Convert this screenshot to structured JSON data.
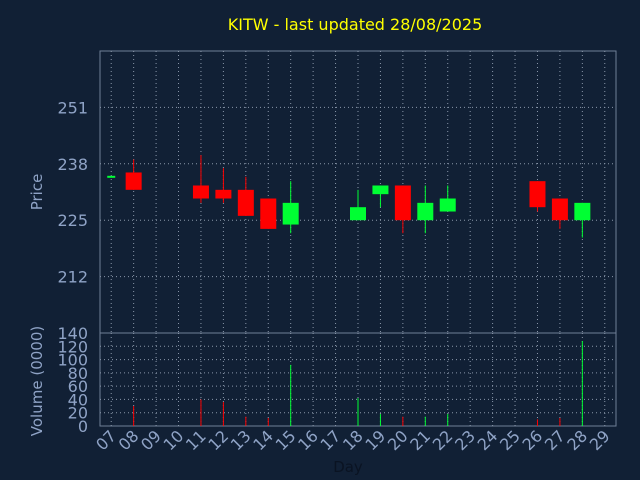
{
  "chart_data": {
    "type": "candlestick",
    "title": "KITW - last updated 28/08/2025",
    "xlabel": "Day",
    "colors": {
      "background": "#112035",
      "panel_border": "#6f7f96",
      "grid": "#8a97aa",
      "text": "#8fa3c6",
      "title": "#ffff00",
      "up": "#00ff33",
      "down": "#ff0000",
      "flat": "#00ff33"
    },
    "categories": [
      "07",
      "08",
      "09",
      "10",
      "11",
      "12",
      "13",
      "14",
      "15",
      "16",
      "17",
      "18",
      "19",
      "20",
      "21",
      "22",
      "23",
      "24",
      "25",
      "26",
      "27",
      "28",
      "29"
    ],
    "price_panel": {
      "ylabel": "Price",
      "ylim": [
        199,
        264
      ],
      "yticks": [
        212,
        225,
        238,
        251
      ],
      "candles": [
        {
          "day": "07",
          "open": 235,
          "close": 235,
          "high": 235,
          "low": 235
        },
        {
          "day": "08",
          "open": 236,
          "close": 232,
          "high": 239,
          "low": 232
        },
        {
          "day": "11",
          "open": 233,
          "close": 230,
          "high": 240,
          "low": 229
        },
        {
          "day": "12",
          "open": 232,
          "close": 230,
          "high": 237,
          "low": 229
        },
        {
          "day": "13",
          "open": 232,
          "close": 226,
          "high": 235,
          "low": 226
        },
        {
          "day": "14",
          "open": 230,
          "close": 223,
          "high": 230,
          "low": 223
        },
        {
          "day": "15",
          "open": 224,
          "close": 229,
          "high": 234,
          "low": 222
        },
        {
          "day": "18",
          "open": 225,
          "close": 228,
          "high": 232,
          "low": 225
        },
        {
          "day": "19",
          "open": 231,
          "close": 233,
          "high": 233,
          "low": 228
        },
        {
          "day": "20",
          "open": 233,
          "close": 225,
          "high": 233,
          "low": 222
        },
        {
          "day": "21",
          "open": 225,
          "close": 229,
          "high": 233,
          "low": 222
        },
        {
          "day": "22",
          "open": 227,
          "close": 230,
          "high": 233,
          "low": 227
        },
        {
          "day": "26",
          "open": 234,
          "close": 228,
          "high": 234,
          "low": 227
        },
        {
          "day": "27",
          "open": 230,
          "close": 225,
          "high": 230,
          "low": 223
        },
        {
          "day": "28",
          "open": 225,
          "close": 229,
          "high": 229,
          "low": 221
        }
      ]
    },
    "volume_panel": {
      "ylabel": "Volume (0000)",
      "ylim": [
        0,
        140
      ],
      "yticks": [
        0,
        20,
        40,
        60,
        80,
        100,
        120,
        140
      ],
      "bars": [
        {
          "day": "08",
          "value": 30,
          "direction": "down"
        },
        {
          "day": "11",
          "value": 40,
          "direction": "down"
        },
        {
          "day": "12",
          "value": 36,
          "direction": "down"
        },
        {
          "day": "13",
          "value": 14,
          "direction": "down"
        },
        {
          "day": "14",
          "value": 12,
          "direction": "down"
        },
        {
          "day": "15",
          "value": 92,
          "direction": "up"
        },
        {
          "day": "18",
          "value": 42,
          "direction": "up"
        },
        {
          "day": "19",
          "value": 18,
          "direction": "up"
        },
        {
          "day": "20",
          "value": 14,
          "direction": "down"
        },
        {
          "day": "21",
          "value": 14,
          "direction": "up"
        },
        {
          "day": "22",
          "value": 18,
          "direction": "up"
        },
        {
          "day": "26",
          "value": 10,
          "direction": "down"
        },
        {
          "day": "27",
          "value": 12,
          "direction": "down"
        },
        {
          "day": "28",
          "value": 128,
          "direction": "up"
        }
      ]
    }
  }
}
